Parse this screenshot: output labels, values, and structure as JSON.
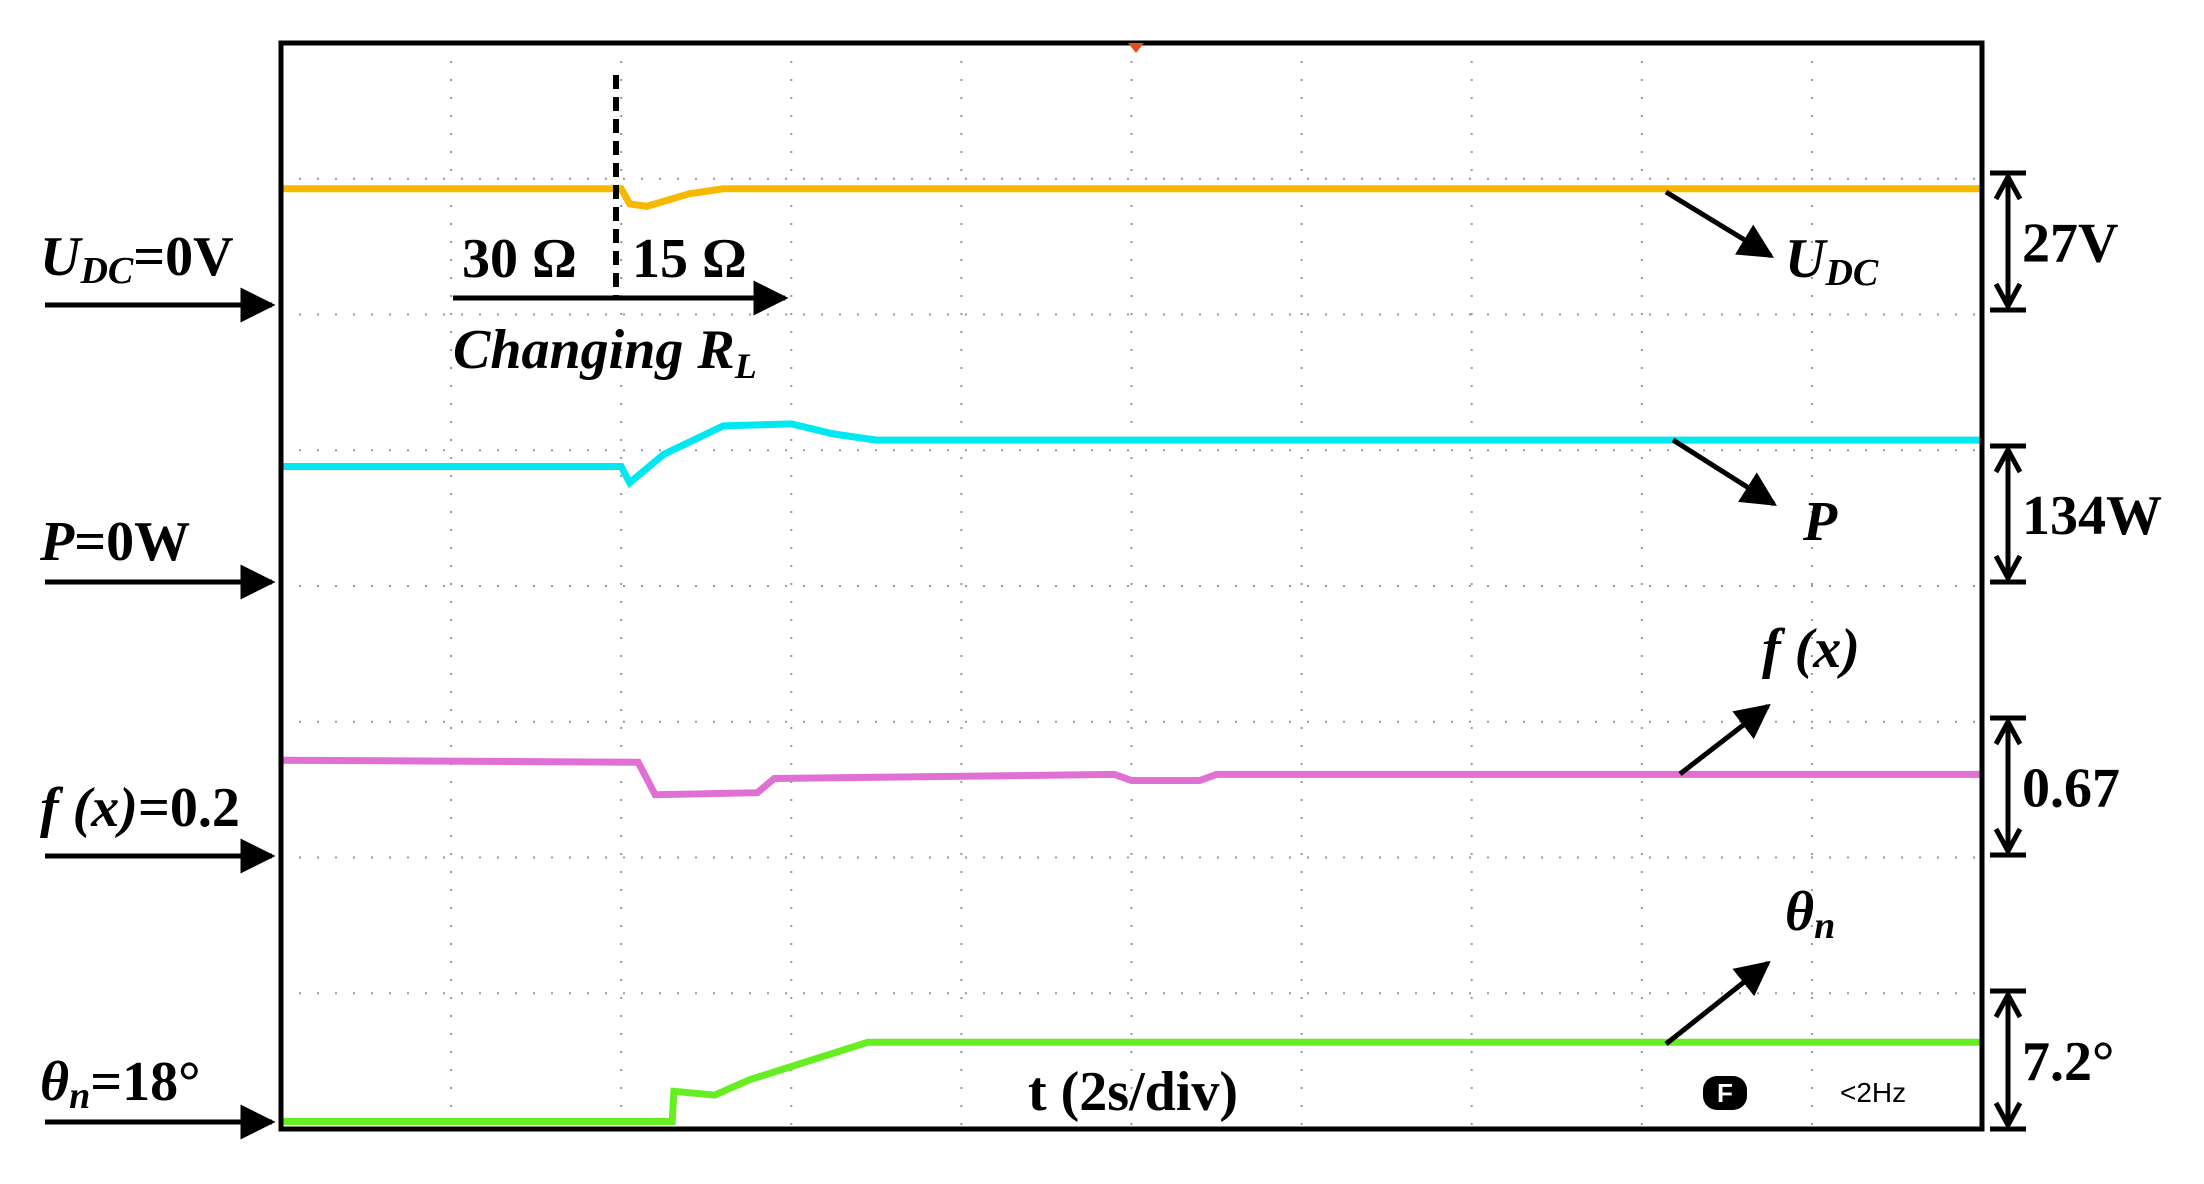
{
  "chart_data": {
    "type": "line",
    "x_label": "t (2s/div)",
    "xlim": [
      0,
      20
    ],
    "xticks": [
      0,
      2,
      4,
      6,
      8,
      10,
      12,
      14,
      16,
      18,
      20
    ],
    "grid": true,
    "load_before": "30 Ω",
    "load_after": "15 Ω",
    "load_label": "Changing R",
    "load_label_sub": "L",
    "scope_icon": "F",
    "scope_filter": "<2Hz",
    "series": [
      {
        "name": "U",
        "name_sub": "DC",
        "zero_label": "=0V",
        "scale_label": "27V",
        "color": "#f7b900",
        "ylim": [
          -162,
          54
        ],
        "x": [
          0,
          4,
          4.1,
          4.3,
          4.8,
          5.2,
          20
        ],
        "values": [
          25,
          25,
          22,
          21.5,
          24,
          25,
          25
        ]
      },
      {
        "name": "P",
        "zero_label": "=0W",
        "scale_label": "134W",
        "color": "#00e8f0",
        "ylim": [
          -536,
          536
        ],
        "x": [
          0,
          4,
          4.1,
          4.5,
          5.2,
          6,
          6.5,
          7,
          20
        ],
        "values": [
          118,
          118,
          102,
          130,
          158,
          160,
          150,
          144,
          144
        ]
      },
      {
        "name": "f (x)",
        "zero_label": "=0.2",
        "scale_label": "0.67",
        "color": "#e070d4",
        "ylim": [
          -1.14,
          4.22
        ],
        "x": [
          0,
          4.2,
          4.4,
          5.6,
          5.8,
          9.8,
          10,
          10.8,
          11,
          20
        ],
        "values": [
          0.68,
          0.67,
          0.51,
          0.52,
          0.59,
          0.61,
          0.58,
          0.58,
          0.61,
          0.61
        ]
      },
      {
        "name": "θ",
        "name_sub": "n",
        "zero_label": "=18°",
        "scale_label": "7.2°",
        "color": "#66ee22",
        "ylim": [
          18,
          75.6
        ],
        "x": [
          0,
          4.6,
          4.62,
          5.1,
          5.5,
          6.9,
          20
        ],
        "values": [
          18.4,
          18.4,
          20,
          19.8,
          20.6,
          22.6,
          22.6
        ]
      }
    ]
  }
}
